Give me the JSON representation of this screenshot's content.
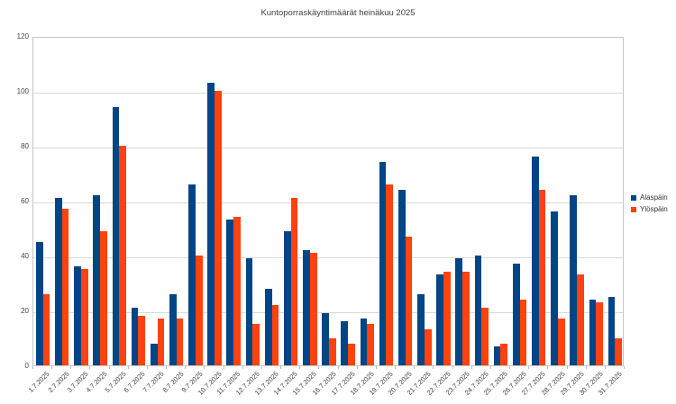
{
  "chart_data": {
    "type": "bar",
    "title": "Kuntoporraskäyntimäärät heinäkuu 2025",
    "categories": [
      "1.7.2025",
      "2.7.2025",
      "3.7.2025",
      "4.7.2025",
      "5.7.2025",
      "6.7.2025",
      "7.7.2025",
      "8.7.2025",
      "9.7.2025",
      "10.7.2025",
      "11.7.2025",
      "12.7.2025",
      "13.7.2025",
      "14.7.2025",
      "15.7.2025",
      "16.7.2025",
      "17.7.2025",
      "18.7.2025",
      "19.7.2025",
      "20.7.2025",
      "21.7.2025",
      "22.7.2025",
      "23.7.2025",
      "24.7.2025",
      "25.7.2025",
      "26.7.2025",
      "27.7.2025",
      "28.7.2025",
      "29.7.2025",
      "30.7.2025",
      "31.7.2025"
    ],
    "series": [
      {
        "name": "Alaspäin",
        "color": "#004586",
        "values": [
          45,
          61,
          36,
          62,
          94,
          21,
          8,
          26,
          66,
          103,
          53,
          39,
          28,
          49,
          42,
          19,
          16,
          17,
          74,
          64,
          26,
          33,
          39,
          40,
          7,
          37,
          76,
          56,
          62,
          24,
          25
        ]
      },
      {
        "name": "Ylöspäin",
        "color": "#ff420e",
        "values": [
          26,
          57,
          35,
          49,
          80,
          18,
          17,
          17,
          40,
          100,
          54,
          15,
          22,
          61,
          41,
          10,
          8,
          15,
          66,
          47,
          13,
          34,
          34,
          21,
          8,
          24,
          64,
          17,
          33,
          23,
          10
        ]
      }
    ],
    "ylabel": "",
    "xlabel": "",
    "ylim": [
      0,
      120
    ],
    "ytick_step": 20,
    "grid": true,
    "legend_position": "right",
    "colors": {
      "grid_line": "#d9d9d9",
      "plot_border": "#c6c6c6",
      "tick_mark": "#b9b9b9",
      "title_text": "#404040",
      "axis_text": "#404040"
    }
  }
}
